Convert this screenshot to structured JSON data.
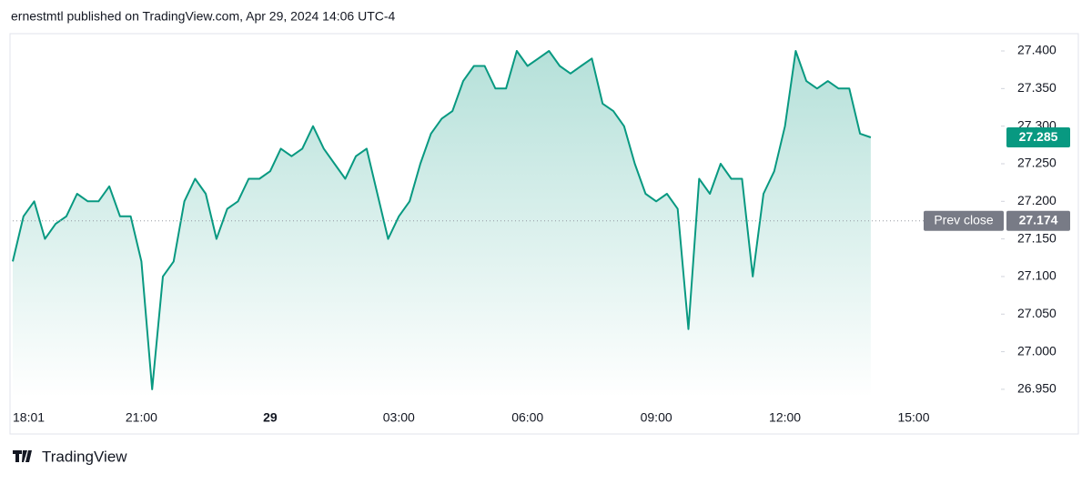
{
  "header": "ernestmtl published on TradingView.com, Apr 29, 2024 14:06 UTC-4",
  "footer": "TradingView",
  "chart_data": {
    "type": "area",
    "categories": [
      "18:01",
      null,
      null,
      null,
      null,
      null,
      null,
      null,
      null,
      null,
      null,
      null,
      "21:00",
      null,
      null,
      null,
      null,
      null,
      null,
      null,
      null,
      null,
      null,
      null,
      "29",
      null,
      null,
      null,
      null,
      null,
      null,
      null,
      null,
      null,
      null,
      null,
      "03:00",
      null,
      null,
      null,
      null,
      null,
      null,
      null,
      null,
      null,
      null,
      null,
      "06:00",
      null,
      null,
      null,
      null,
      null,
      null,
      null,
      null,
      null,
      null,
      null,
      "09:00",
      null,
      null,
      null,
      null,
      null,
      null,
      null,
      null,
      null,
      null,
      null,
      "12:00",
      null,
      null,
      null,
      null,
      null,
      null,
      null,
      null,
      null,
      null,
      null,
      "15:00"
    ],
    "values": [
      27.12,
      27.18,
      27.2,
      27.15,
      27.17,
      27.18,
      27.21,
      27.2,
      27.2,
      27.22,
      27.18,
      27.18,
      27.12,
      26.95,
      27.1,
      27.12,
      27.2,
      27.23,
      27.21,
      27.15,
      27.19,
      27.2,
      27.23,
      27.23,
      27.24,
      27.27,
      27.26,
      27.27,
      27.3,
      27.27,
      27.25,
      27.23,
      27.26,
      27.27,
      27.21,
      27.15,
      27.18,
      27.2,
      27.25,
      27.29,
      27.31,
      27.32,
      27.36,
      27.38,
      27.38,
      27.35,
      27.35,
      27.4,
      27.38,
      27.39,
      27.4,
      27.38,
      27.37,
      27.38,
      27.39,
      27.33,
      27.32,
      27.3,
      27.25,
      27.21,
      27.2,
      27.21,
      27.19,
      27.03,
      27.23,
      27.21,
      27.25,
      27.23,
      27.23,
      27.1,
      27.21,
      27.24,
      27.3,
      27.4,
      27.36,
      27.35,
      27.36,
      27.35,
      27.35,
      27.29,
      27.285,
      null,
      null,
      null,
      null
    ],
    "color": "#089981",
    "ylim": [
      26.939,
      27.423
    ],
    "yticks": [
      {
        "value": 26.95,
        "label": "26.950"
      },
      {
        "value": 27.0,
        "label": "27.000"
      },
      {
        "value": 27.05,
        "label": "27.050"
      },
      {
        "value": 27.1,
        "label": "27.100"
      },
      {
        "value": 27.15,
        "label": "27.150"
      },
      {
        "value": 27.2,
        "label": "27.200"
      },
      {
        "value": 27.25,
        "label": "27.250"
      },
      {
        "value": 27.3,
        "label": "27.300"
      },
      {
        "value": 27.35,
        "label": "27.350"
      },
      {
        "value": 27.4,
        "label": "27.400"
      }
    ],
    "last_value": 27.285,
    "prev_close": {
      "label": "Prev close",
      "value": 27.174
    }
  }
}
